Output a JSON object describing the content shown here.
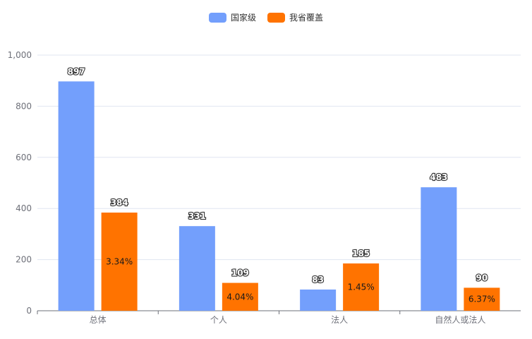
{
  "chart_data": {
    "type": "bar",
    "categories": [
      "总体",
      "个人",
      "法人",
      "自然人或法人"
    ],
    "series": [
      {
        "name": "国家级",
        "color": "#739ffc",
        "values": [
          897,
          331,
          83,
          483
        ],
        "inner_labels": [
          "",
          "",
          "",
          ""
        ]
      },
      {
        "name": "我省覆盖",
        "color": "#ff7300",
        "values": [
          384,
          109,
          185,
          90
        ],
        "inner_labels": [
          "3.34%",
          "4.04%",
          "1.45%",
          "6.37%"
        ]
      }
    ],
    "ylim": [
      0,
      1000
    ],
    "yticks": [
      0,
      200,
      400,
      600,
      800,
      1000
    ],
    "ytick_labels": [
      "0",
      "200",
      "400",
      "600",
      "800",
      "1,000"
    ],
    "title": "",
    "xlabel": "",
    "ylabel": "",
    "grid": true,
    "legend_position": "top-center"
  }
}
